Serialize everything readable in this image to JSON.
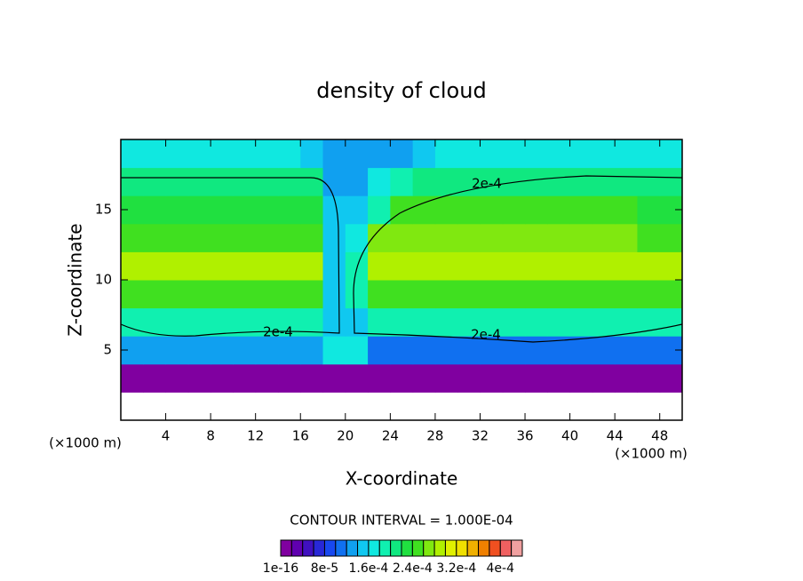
{
  "chart_data": {
    "type": "contour",
    "title": "density of cloud",
    "xlabel": "X-coordinate",
    "ylabel": "Z-coordinate",
    "xunit": "(×1000 m)",
    "yunit": "(×1000 m)",
    "xlim": [
      0,
      50
    ],
    "xticks": [
      4,
      8,
      12,
      16,
      20,
      24,
      28,
      32,
      36,
      40,
      44,
      48
    ],
    "ylim": [
      0,
      20
    ],
    "yticks": [
      5,
      10,
      15
    ],
    "contour_interval": "CONTOUR INTERVAL = 1.000E-04",
    "contour_level": {
      "value": 0.0002,
      "label": "2e-4"
    },
    "field": {
      "x": [
        1,
        3,
        5,
        7,
        9,
        11,
        13,
        15,
        17,
        19,
        21,
        23,
        25,
        27,
        29,
        31,
        33,
        35,
        37,
        39,
        41,
        43,
        45,
        47,
        49
      ],
      "z": [
        1,
        3,
        5,
        7,
        9,
        11,
        13,
        15,
        17,
        19
      ],
      "values": [
        [
          null,
          null,
          null,
          null,
          null,
          null,
          null,
          null,
          null,
          null,
          null,
          null,
          null,
          null,
          null,
          null,
          null,
          null,
          null,
          null,
          null,
          null,
          null,
          null,
          null
        ],
        [
          1e-05,
          1e-05,
          1e-05,
          1e-05,
          1e-05,
          1e-05,
          1e-05,
          1e-05,
          1e-05,
          1e-05,
          1e-05,
          1e-05,
          1e-05,
          1e-05,
          1e-05,
          1e-05,
          1e-05,
          1e-05,
          1e-05,
          1e-05,
          1e-05,
          1e-05,
          1e-05,
          1e-05,
          1e-05
        ],
        [
          0.00012,
          0.00012,
          0.00012,
          0.00012,
          0.00012,
          0.00012,
          0.00012,
          0.00012,
          0.00012,
          0.00016,
          0.00016,
          0.0001,
          0.0001,
          0.0001,
          0.0001,
          0.0001,
          0.0001,
          0.0001,
          0.0001,
          0.0001,
          0.0001,
          0.0001,
          0.0001,
          0.0001,
          0.0001
        ],
        [
          0.00019,
          0.00019,
          0.00019,
          0.00019,
          0.00019,
          0.00019,
          0.00019,
          0.00019,
          0.00019,
          0.00015,
          0.00015,
          0.00019,
          0.00019,
          0.00019,
          0.00019,
          0.00019,
          0.00019,
          0.00019,
          0.00019,
          0.00019,
          0.00019,
          0.00019,
          0.00019,
          0.00019,
          0.00019
        ],
        [
          0.00025,
          0.00025,
          0.00025,
          0.00025,
          0.00025,
          0.00025,
          0.00025,
          0.00025,
          0.00025,
          0.00015,
          0.00018,
          0.00025,
          0.00025,
          0.00025,
          0.00025,
          0.00025,
          0.00025,
          0.00025,
          0.00025,
          0.00025,
          0.00025,
          0.00025,
          0.00025,
          0.00025,
          0.00025
        ],
        [
          0.0003,
          0.0003,
          0.0003,
          0.0003,
          0.0003,
          0.0003,
          0.0003,
          0.0003,
          0.0003,
          0.00015,
          0.00019,
          0.0003,
          0.0003,
          0.0003,
          0.0003,
          0.0003,
          0.0003,
          0.0003,
          0.0003,
          0.0003,
          0.0003,
          0.0003,
          0.0003,
          0.0003,
          0.0003
        ],
        [
          0.00026,
          0.00026,
          0.00026,
          0.00026,
          0.00026,
          0.00026,
          0.00026,
          0.00026,
          0.00026,
          0.00015,
          0.00017,
          0.00028,
          0.00028,
          0.00028,
          0.00028,
          0.00028,
          0.00028,
          0.00028,
          0.00028,
          0.00028,
          0.00028,
          0.00028,
          0.00028,
          0.00026,
          0.00026
        ],
        [
          0.00023,
          0.00023,
          0.00023,
          0.00023,
          0.00023,
          0.00023,
          0.00023,
          0.00023,
          0.00023,
          0.00015,
          0.00015,
          0.00019,
          0.00024,
          0.00024,
          0.00024,
          0.00024,
          0.00024,
          0.00024,
          0.00024,
          0.00024,
          0.00024,
          0.00024,
          0.00024,
          0.00023,
          0.00023
        ],
        [
          0.0002,
          0.0002,
          0.0002,
          0.0002,
          0.0002,
          0.0002,
          0.0002,
          0.0002,
          0.0002,
          0.00014,
          0.00014,
          0.00016,
          0.00018,
          0.0002,
          0.0002,
          0.0002,
          0.0002,
          0.0002,
          0.0002,
          0.0002,
          0.0002,
          0.0002,
          0.0002,
          0.0002,
          0.0002
        ],
        [
          0.00017,
          0.00017,
          0.00017,
          0.00017,
          0.00017,
          0.00017,
          0.00017,
          0.00017,
          0.00015,
          0.00013,
          0.00013,
          0.00013,
          0.00013,
          0.00015,
          0.00017,
          0.00017,
          0.00017,
          0.00017,
          0.00017,
          0.00017,
          0.00017,
          0.00017,
          0.00017,
          0.00017,
          0.00017
        ]
      ]
    },
    "colorbar": {
      "lim": [
        0,
        0.00044
      ],
      "colors": [
        "#8000a0",
        "#6000b0",
        "#4010c0",
        "#2828d8",
        "#1848f0",
        "#1070f0",
        "#10a0f0",
        "#10c8f0",
        "#10e8e0",
        "#10f0b0",
        "#10e880",
        "#20e040",
        "#40e020",
        "#80e810",
        "#b0f000",
        "#e0f000",
        "#f0e000",
        "#f0b000",
        "#f08000",
        "#f05020",
        "#f06060",
        "#f0a0a0"
      ],
      "ticks": [
        {
          "value": 1e-16,
          "label": "1e-16"
        },
        {
          "value": 8e-05,
          "label": "8e-5"
        },
        {
          "value": 0.00016,
          "label": "1.6e-4"
        },
        {
          "value": 0.00024,
          "label": "2.4e-4"
        },
        {
          "value": 0.00032,
          "label": "3.2e-4"
        },
        {
          "value": 0.0004,
          "label": "4e-4"
        }
      ]
    }
  }
}
